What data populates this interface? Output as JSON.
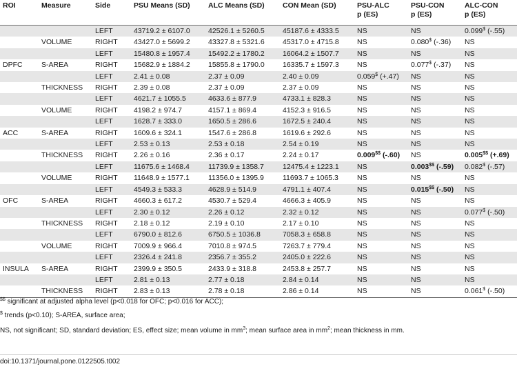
{
  "headers": [
    {
      "line1": "ROI",
      "line2": ""
    },
    {
      "line1": "Measure",
      "line2": ""
    },
    {
      "line1": "Side",
      "line2": ""
    },
    {
      "line1": "PSU Means (SD)",
      "line2": ""
    },
    {
      "line1": "ALC Means (SD)",
      "line2": ""
    },
    {
      "line1": "CON Mean (SD)",
      "line2": ""
    },
    {
      "line1": "PSU-ALC",
      "line2": "p (ES)"
    },
    {
      "line1": "PSU-CON",
      "line2": "p (ES)"
    },
    {
      "line1": "ALC-CON",
      "line2": "p (ES)"
    }
  ],
  "rows": [
    {
      "roi": "",
      "measure": "",
      "side": "LEFT",
      "psu": "43719.2 ± 6107.0",
      "alc": "42526.1 ± 5260.5",
      "con": "45187.6 ± 4333.5",
      "psu_alc": {
        "val": "NS",
        "sup": "",
        "es": "",
        "bold": false
      },
      "psu_con": {
        "val": "NS",
        "sup": "",
        "es": "",
        "bold": false
      },
      "alc_con": {
        "val": "0.099",
        "sup": "$",
        "es": " (-.55)",
        "bold": false
      }
    },
    {
      "roi": "",
      "measure": "VOLUME",
      "side": "RIGHT",
      "psu": "43427.0 ± 5699.2",
      "alc": "43327.8 ± 5321.6",
      "con": "45317.0 ± 4715.8",
      "psu_alc": {
        "val": "NS",
        "sup": "",
        "es": "",
        "bold": false
      },
      "psu_con": {
        "val": "0.080",
        "sup": "$",
        "es": " (-.36)",
        "bold": false
      },
      "alc_con": {
        "val": "NS",
        "sup": "",
        "es": "",
        "bold": false
      }
    },
    {
      "roi": "",
      "measure": "",
      "side": "LEFT",
      "psu": "15480.8 ± 1957.4",
      "alc": "15492.2 ± 1780.2",
      "con": "16064.2 ± 1507.7",
      "psu_alc": {
        "val": "NS",
        "sup": "",
        "es": "",
        "bold": false
      },
      "psu_con": {
        "val": "NS",
        "sup": "",
        "es": "",
        "bold": false
      },
      "alc_con": {
        "val": "NS",
        "sup": "",
        "es": "",
        "bold": false
      }
    },
    {
      "roi": "DPFC",
      "measure": "S-AREA",
      "side": "RIGHT",
      "psu": "15682.9 ± 1884.2",
      "alc": "15855.8 ± 1790.0",
      "con": "16335.7 ± 1597.3",
      "psu_alc": {
        "val": "NS",
        "sup": "",
        "es": "",
        "bold": false
      },
      "psu_con": {
        "val": "0.077",
        "sup": "$",
        "es": " (-.37)",
        "bold": false
      },
      "alc_con": {
        "val": "NS",
        "sup": "",
        "es": "",
        "bold": false
      }
    },
    {
      "roi": "",
      "measure": "",
      "side": "LEFT",
      "psu": "2.41 ± 0.08",
      "alc": "2.37 ± 0.09",
      "con": "2.40 ± 0.09",
      "psu_alc": {
        "val": "0.059",
        "sup": "$",
        "es": " (+.47)",
        "bold": false
      },
      "psu_con": {
        "val": "NS",
        "sup": "",
        "es": "",
        "bold": false
      },
      "alc_con": {
        "val": "NS",
        "sup": "",
        "es": "",
        "bold": false
      }
    },
    {
      "roi": "",
      "measure": "THICKNESS",
      "side": "RIGHT",
      "psu": "2.39 ± 0.08",
      "alc": "2.37 ± 0.09",
      "con": "2.37 ± 0.09",
      "psu_alc": {
        "val": "NS",
        "sup": "",
        "es": "",
        "bold": false
      },
      "psu_con": {
        "val": "NS",
        "sup": "",
        "es": "",
        "bold": false
      },
      "alc_con": {
        "val": "NS",
        "sup": "",
        "es": "",
        "bold": false
      }
    },
    {
      "roi": "",
      "measure": "",
      "side": "LEFT",
      "psu": "4621.7 ± 1055.5",
      "alc": "4633.6 ± 877.9",
      "con": "4733.1 ± 828.3",
      "psu_alc": {
        "val": "NS",
        "sup": "",
        "es": "",
        "bold": false
      },
      "psu_con": {
        "val": "NS",
        "sup": "",
        "es": "",
        "bold": false
      },
      "alc_con": {
        "val": "NS",
        "sup": "",
        "es": "",
        "bold": false
      }
    },
    {
      "roi": "",
      "measure": "VOLUME",
      "side": "RIGHT",
      "psu": "4198.2 ± 974.7",
      "alc": "4157.1 ± 869.4",
      "con": "4152.3 ± 916.5",
      "psu_alc": {
        "val": "NS",
        "sup": "",
        "es": "",
        "bold": false
      },
      "psu_con": {
        "val": "NS",
        "sup": "",
        "es": "",
        "bold": false
      },
      "alc_con": {
        "val": "NS",
        "sup": "",
        "es": "",
        "bold": false
      }
    },
    {
      "roi": "",
      "measure": "",
      "side": "LEFT",
      "psu": "1628.7 ± 333.0",
      "alc": "1650.5 ± 286.6",
      "con": "1672.5 ± 240.4",
      "psu_alc": {
        "val": "NS",
        "sup": "",
        "es": "",
        "bold": false
      },
      "psu_con": {
        "val": "NS",
        "sup": "",
        "es": "",
        "bold": false
      },
      "alc_con": {
        "val": "NS",
        "sup": "",
        "es": "",
        "bold": false
      }
    },
    {
      "roi": "ACC",
      "measure": "S-AREA",
      "side": "RIGHT",
      "psu": "1609.6 ± 324.1",
      "alc": "1547.6 ± 286.8",
      "con": "1619.6 ± 292.6",
      "psu_alc": {
        "val": "NS",
        "sup": "",
        "es": "",
        "bold": false
      },
      "psu_con": {
        "val": "NS",
        "sup": "",
        "es": "",
        "bold": false
      },
      "alc_con": {
        "val": "NS",
        "sup": "",
        "es": "",
        "bold": false
      }
    },
    {
      "roi": "",
      "measure": "",
      "side": "LEFT",
      "psu": "2.53 ± 0.13",
      "alc": "2.53 ± 0.18",
      "con": "2.54 ± 0.19",
      "psu_alc": {
        "val": "NS",
        "sup": "",
        "es": "",
        "bold": false
      },
      "psu_con": {
        "val": "NS",
        "sup": "",
        "es": "",
        "bold": false
      },
      "alc_con": {
        "val": "NS",
        "sup": "",
        "es": "",
        "bold": false
      }
    },
    {
      "roi": "",
      "measure": "THICKNESS",
      "side": "RIGHT",
      "psu": "2.26 ± 0.16",
      "alc": "2.36 ± 0.17",
      "con": "2.24 ± 0.17",
      "psu_alc": {
        "val": "0.009",
        "sup": "$$",
        "es": " (-.60)",
        "bold": true
      },
      "psu_con": {
        "val": "NS",
        "sup": "",
        "es": "",
        "bold": false
      },
      "alc_con": {
        "val": "0.005",
        "sup": "$$",
        "es": " (+.69)",
        "bold": true
      }
    },
    {
      "roi": "",
      "measure": "",
      "side": "LEFT",
      "psu": "11675.6 ± 1468.4",
      "alc": "11739.9 ± 1358.7",
      "con": "12475.4 ± 1223.1",
      "psu_alc": {
        "val": "NS",
        "sup": "",
        "es": "",
        "bold": false
      },
      "psu_con": {
        "val": "0.003",
        "sup": "$$",
        "es": " (-.59)",
        "bold": true
      },
      "alc_con": {
        "val": "0.082",
        "sup": "$",
        "es": " (-.57)",
        "bold": false
      }
    },
    {
      "roi": "",
      "measure": "VOLUME",
      "side": "RIGHT",
      "psu": "11648.9 ± 1577.1",
      "alc": "11356.0 ± 1395.9",
      "con": "11693.7 ± 1065.3",
      "psu_alc": {
        "val": "NS",
        "sup": "",
        "es": "",
        "bold": false
      },
      "psu_con": {
        "val": "NS",
        "sup": "",
        "es": "",
        "bold": false
      },
      "alc_con": {
        "val": "NS",
        "sup": "",
        "es": "",
        "bold": false
      }
    },
    {
      "roi": "",
      "measure": "",
      "side": "LEFT",
      "psu": "4549.3 ± 533.3",
      "alc": "4628.9 ± 514.9",
      "con": "4791.1 ± 407.4",
      "psu_alc": {
        "val": "NS",
        "sup": "",
        "es": "",
        "bold": false
      },
      "psu_con": {
        "val": "0.015",
        "sup": "$$",
        "es": " (-.50)",
        "bold": true
      },
      "alc_con": {
        "val": "NS",
        "sup": "",
        "es": "",
        "bold": false
      }
    },
    {
      "roi": "OFC",
      "measure": "S-AREA",
      "side": "RIGHT",
      "psu": "4660.3 ± 617.2",
      "alc": "4530.7 ± 529.4",
      "con": "4666.3 ± 405.9",
      "psu_alc": {
        "val": "NS",
        "sup": "",
        "es": "",
        "bold": false
      },
      "psu_con": {
        "val": "NS",
        "sup": "",
        "es": "",
        "bold": false
      },
      "alc_con": {
        "val": "NS",
        "sup": "",
        "es": "",
        "bold": false
      }
    },
    {
      "roi": "",
      "measure": "",
      "side": "LEFT",
      "psu": "2.30 ± 0.12",
      "alc": "2.26 ± 0.12",
      "con": "2.32 ± 0.12",
      "psu_alc": {
        "val": "NS",
        "sup": "",
        "es": "",
        "bold": false
      },
      "psu_con": {
        "val": "NS",
        "sup": "",
        "es": "",
        "bold": false
      },
      "alc_con": {
        "val": "0.077",
        "sup": "$",
        "es": " (-.50)",
        "bold": false
      }
    },
    {
      "roi": "",
      "measure": "THICKNESS",
      "side": "RIGHT",
      "psu": "2.18 ± 0.12",
      "alc": "2.19 ± 0.10",
      "con": "2.17 ± 0.10",
      "psu_alc": {
        "val": "NS",
        "sup": "",
        "es": "",
        "bold": false
      },
      "psu_con": {
        "val": "NS",
        "sup": "",
        "es": "",
        "bold": false
      },
      "alc_con": {
        "val": "NS",
        "sup": "",
        "es": "",
        "bold": false
      }
    },
    {
      "roi": "",
      "measure": "",
      "side": "LEFT",
      "psu": "6790.0 ± 812.6",
      "alc": "6750.5 ± 1036.8",
      "con": "7058.3 ± 658.8",
      "psu_alc": {
        "val": "NS",
        "sup": "",
        "es": "",
        "bold": false
      },
      "psu_con": {
        "val": "NS",
        "sup": "",
        "es": "",
        "bold": false
      },
      "alc_con": {
        "val": "NS",
        "sup": "",
        "es": "",
        "bold": false
      }
    },
    {
      "roi": "",
      "measure": "VOLUME",
      "side": "RIGHT",
      "psu": "7009.9 ± 966.4",
      "alc": "7010.8 ± 974.5",
      "con": "7263.7 ± 779.4",
      "psu_alc": {
        "val": "NS",
        "sup": "",
        "es": "",
        "bold": false
      },
      "psu_con": {
        "val": "NS",
        "sup": "",
        "es": "",
        "bold": false
      },
      "alc_con": {
        "val": "NS",
        "sup": "",
        "es": "",
        "bold": false
      }
    },
    {
      "roi": "",
      "measure": "",
      "side": "LEFT",
      "psu": "2326.4 ± 241.8",
      "alc": "2356.7 ± 355.2",
      "con": "2405.0 ± 222.6",
      "psu_alc": {
        "val": "NS",
        "sup": "",
        "es": "",
        "bold": false
      },
      "psu_con": {
        "val": "NS",
        "sup": "",
        "es": "",
        "bold": false
      },
      "alc_con": {
        "val": "NS",
        "sup": "",
        "es": "",
        "bold": false
      }
    },
    {
      "roi": "INSULA",
      "measure": "S-AREA",
      "side": "RIGHT",
      "psu": "2399.9 ± 350.5",
      "alc": "2433.9 ± 318.8",
      "con": "2453.8 ± 257.7",
      "psu_alc": {
        "val": "NS",
        "sup": "",
        "es": "",
        "bold": false
      },
      "psu_con": {
        "val": "NS",
        "sup": "",
        "es": "",
        "bold": false
      },
      "alc_con": {
        "val": "NS",
        "sup": "",
        "es": "",
        "bold": false
      }
    },
    {
      "roi": "",
      "measure": "",
      "side": "LEFT",
      "psu": "2.81 ± 0.13",
      "alc": "2.77 ± 0.18",
      "con": "2.84 ± 0.14",
      "psu_alc": {
        "val": "NS",
        "sup": "",
        "es": "",
        "bold": false
      },
      "psu_con": {
        "val": "NS",
        "sup": "",
        "es": "",
        "bold": false
      },
      "alc_con": {
        "val": "NS",
        "sup": "",
        "es": "",
        "bold": false
      }
    },
    {
      "roi": "",
      "measure": "THICKNESS",
      "side": "RIGHT",
      "psu": "2.83 ± 0.13",
      "alc": "2.78 ± 0.18",
      "con": "2.86 ± 0.14",
      "psu_alc": {
        "val": "NS",
        "sup": "",
        "es": "",
        "bold": false
      },
      "psu_con": {
        "val": "NS",
        "sup": "",
        "es": "",
        "bold": false
      },
      "alc_con": {
        "val": "0.061",
        "sup": "$",
        "es": " (-.50)",
        "bold": false
      }
    }
  ],
  "footnotes": {
    "fn1": {
      "sup": "$$",
      "text": " significant at adjusted alpha level (p<0.018 for OFC; p<0.016 for ACC);"
    },
    "fn2": {
      "sup": "$",
      "text": " trends (p<0.10); S-AREA, surface area;"
    },
    "fn3": {
      "part1": "NS, not significant; SD, standard deviation; ES, effect size; mean volume in mm",
      "sup1": "3",
      "part2": "; mean surface area in mm",
      "sup2": "2",
      "part3": "; mean thickness in mm."
    }
  },
  "doi": "doi:10.1371/journal.pone.0122505.t002"
}
